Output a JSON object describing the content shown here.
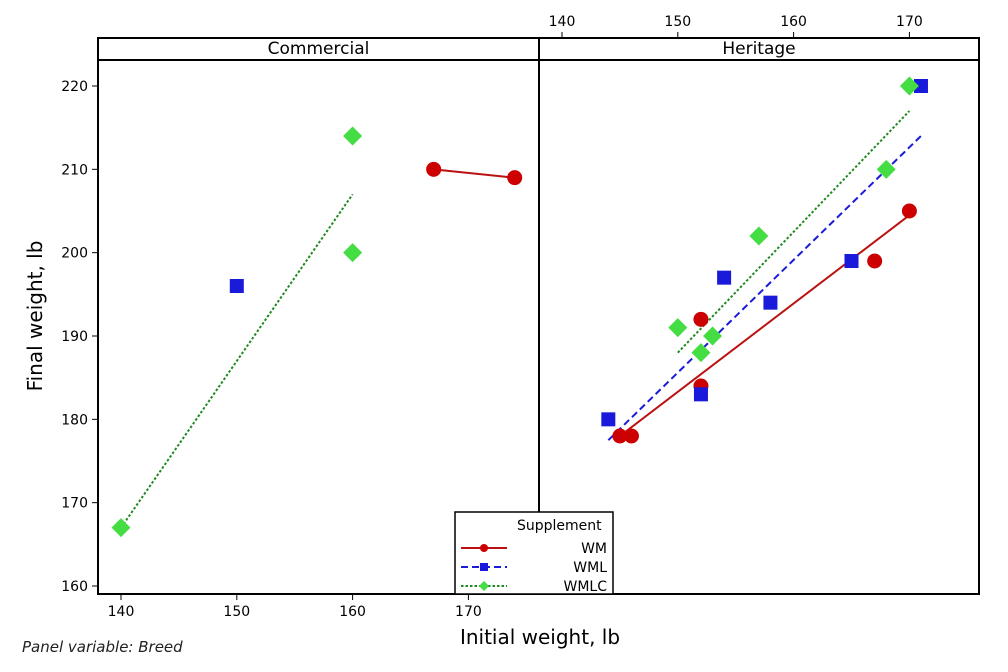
{
  "chart_data": {
    "type": "scatter",
    "xlabel": "Initial weight, lb",
    "ylabel": "Final weight, lb",
    "footnote": "Panel variable: Breed",
    "ylim": [
      160,
      220
    ],
    "yticks": [
      160,
      170,
      180,
      190,
      200,
      210,
      220
    ],
    "legend": {
      "title": "Supplement",
      "placement": "bottom-center"
    },
    "series_styles": [
      {
        "name": "WM",
        "color": "#cc0000",
        "marker": "circle",
        "line": "solid",
        "line_color": "#bb1111"
      },
      {
        "name": "WML",
        "color": "#1a1adb",
        "marker": "square",
        "line": "dashed",
        "line_color": "#1a1adb"
      },
      {
        "name": "WMLC",
        "color": "#44dd44",
        "marker": "diamond",
        "line": "dotted",
        "line_color": "#1f8a1f"
      }
    ],
    "panels": [
      {
        "title": "Commercial",
        "xlim": [
          138,
          176
        ],
        "xticks": [
          140,
          150,
          160,
          170
        ],
        "series": [
          {
            "name": "WM",
            "points": [
              [
                167,
                210
              ],
              [
                174,
                209
              ]
            ],
            "fit": [
              [
                167,
                210
              ],
              [
                174,
                209
              ]
            ]
          },
          {
            "name": "WML",
            "points": [
              [
                150,
                196
              ]
            ],
            "fit": null
          },
          {
            "name": "WMLC",
            "points": [
              [
                140,
                167
              ],
              [
                160,
                214
              ],
              [
                160,
                200
              ]
            ],
            "fit": [
              [
                140,
                167
              ],
              [
                160,
                207
              ]
            ]
          }
        ]
      },
      {
        "title": "Heritage",
        "xlim": [
          138,
          176
        ],
        "xticks": [
          140,
          150,
          160,
          170
        ],
        "series": [
          {
            "name": "WM",
            "points": [
              [
                145,
                178
              ],
              [
                146,
                178
              ],
              [
                152,
                192
              ],
              [
                152,
                184
              ],
              [
                167,
                199
              ],
              [
                170,
                205
              ]
            ],
            "fit": [
              [
                145,
                178
              ],
              [
                170,
                204.5
              ]
            ]
          },
          {
            "name": "WML",
            "points": [
              [
                144,
                180
              ],
              [
                152,
                183
              ],
              [
                154,
                197
              ],
              [
                158,
                194
              ],
              [
                165,
                199
              ],
              [
                171,
                220
              ]
            ],
            "fit": [
              [
                144,
                177.5
              ],
              [
                171,
                214
              ]
            ]
          },
          {
            "name": "WMLC",
            "points": [
              [
                150,
                191
              ],
              [
                152,
                188
              ],
              [
                153,
                190
              ],
              [
                157,
                202
              ],
              [
                168,
                210
              ],
              [
                170,
                220
              ]
            ],
            "fit": [
              [
                150,
                188
              ],
              [
                170,
                217
              ]
            ]
          }
        ]
      }
    ]
  }
}
